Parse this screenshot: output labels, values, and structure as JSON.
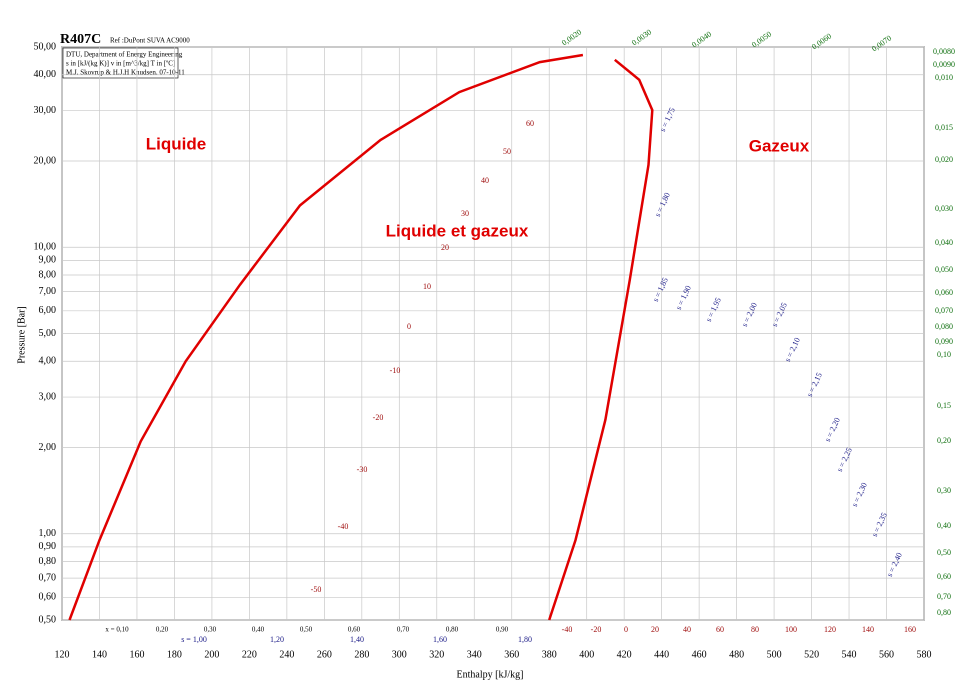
{
  "chart_data": {
    "type": "line",
    "title": "R407C",
    "ref": "Ref :DuPont SUVA AC9000",
    "info": [
      "DTU, Department of Energy Engineering",
      "s in [kJ/(kg K)]  v in [m^3/kg]  T in [ºC]",
      "M.J. Skovrup & H.J.H Knudsen. 07-10-11"
    ],
    "x_label": "Enthalpy [kJ/kg]",
    "y_label": "Pressure [Bar]",
    "log_y": true,
    "grid": true,
    "xlim": [
      120,
      580
    ],
    "ylim": [
      0.5,
      50
    ],
    "xticks": [
      120,
      140,
      160,
      180,
      200,
      220,
      240,
      260,
      280,
      300,
      320,
      340,
      360,
      380,
      400,
      420,
      440,
      460,
      480,
      500,
      520,
      540,
      560,
      580
    ],
    "yticks": [
      {
        "value": 0.5,
        "label": "0,50"
      },
      {
        "value": 0.6,
        "label": "0,60"
      },
      {
        "value": 0.7,
        "label": "0,70"
      },
      {
        "value": 0.8,
        "label": "0,80"
      },
      {
        "value": 0.9,
        "label": "0,90"
      },
      {
        "value": 1,
        "label": "1,00"
      },
      {
        "value": 2,
        "label": "2,00"
      },
      {
        "value": 3,
        "label": "3,00"
      },
      {
        "value": 4,
        "label": "4,00"
      },
      {
        "value": 5,
        "label": "5,00"
      },
      {
        "value": 6,
        "label": "6,00"
      },
      {
        "value": 7,
        "label": "7,00"
      },
      {
        "value": 8,
        "label": "8,00"
      },
      {
        "value": 9,
        "label": "9,00"
      },
      {
        "value": 10,
        "label": "10,00"
      },
      {
        "value": 20,
        "label": "20,00"
      },
      {
        "value": 30,
        "label": "30,00"
      },
      {
        "value": 40,
        "label": "40,00"
      },
      {
        "value": 50,
        "label": "50,00"
      }
    ],
    "series": [
      {
        "color": "#e00000",
        "x": [
          124,
          140,
          162,
          186,
          215,
          247,
          290,
          332,
          375,
          398
        ],
        "values": [
          0.5,
          0.95,
          2.1,
          4.0,
          7.4,
          14,
          23.7,
          34.8,
          44.3,
          46.9
        ]
      },
      {
        "color": "#e00000",
        "x": [
          380,
          394,
          410,
          423,
          433,
          435,
          428,
          415
        ],
        "values": [
          0.5,
          0.95,
          2.5,
          7.7,
          19.4,
          30.1,
          38.4,
          45.1
        ]
      }
    ],
    "region_labels": [
      "Liquide",
      "Liquide et gazeux",
      "Gazeux"
    ],
    "isotherm_labels": [
      "60",
      "50",
      "40",
      "30",
      "20",
      "10",
      "0",
      "-10",
      "-20",
      "-30",
      "-40",
      "-50"
    ],
    "quality_labels": [
      "x = 0,10",
      "0,20",
      "0,30",
      "0,40",
      "0,50",
      "0,60",
      "0,70",
      "0,80",
      "0,90"
    ],
    "entropy_labels": [
      "s = 1,00",
      "1,20",
      "1,40",
      "1,60",
      "1,80"
    ],
    "temperature_labels": [
      "-40",
      "-20",
      "0",
      "20",
      "40",
      "60",
      "80",
      "100",
      "120",
      "140",
      "160"
    ],
    "isentrope_labels": [
      "s = 1,75",
      "s = 1,80",
      "s = 1,85",
      "s = 1,90",
      "s = 1,95",
      "s = 2,00",
      "s = 2,05",
      "s = 2,10",
      "s = 2,15",
      "s = 2,20",
      "s = 2,25",
      "s = 2,30",
      "s = 2,35",
      "s = 2,40"
    ],
    "volume_top_labels": [
      "0,0020",
      "0,0030",
      "0,0040",
      "0,0050",
      "0,0060",
      "0,0070"
    ],
    "volume_labels": [
      "0,0080",
      "0,0090",
      "0,010",
      "0,015",
      "0,020",
      "0,030",
      "0,040",
      "0,050",
      "0,060",
      "0,070",
      "0,080",
      "0,090",
      "0,10",
      "0,15",
      "0,20",
      "0,30",
      "0,40",
      "0,50",
      "0,60",
      "0,70",
      "0,80"
    ]
  }
}
